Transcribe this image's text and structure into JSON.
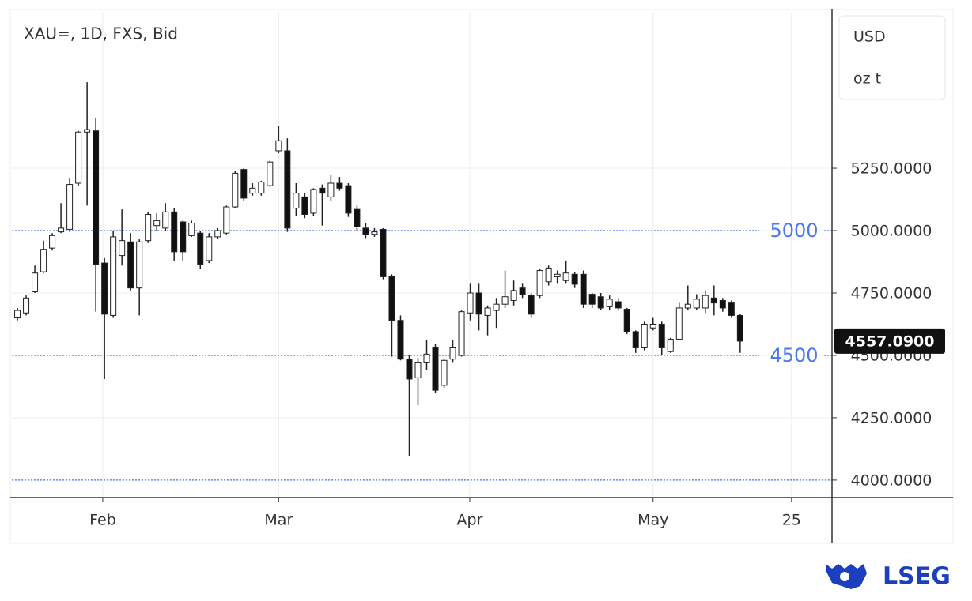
{
  "chart_data": {
    "type": "candlestick",
    "title": "XAU=, 1D, FXS, Bid",
    "units": [
      "USD",
      "oz t"
    ],
    "open": [
      4650,
      4670,
      4755,
      4835,
      4930,
      4995,
      5005,
      5190,
      5395,
      5400,
      4870,
      4660,
      4900,
      4955,
      4770,
      4960,
      5020,
      5010,
      5075,
      5035,
      4980,
      4990,
      4880,
      4975,
      4990,
      5095,
      5245,
      5150,
      5150,
      5180,
      5320,
      5320,
      5090,
      5135,
      5070,
      5170,
      5135,
      5190,
      5180,
      5085,
      5010,
      4985,
      5005,
      4815,
      4640,
      4485,
      4410,
      4470,
      4530,
      4380,
      4485,
      4500,
      4670,
      4750,
      4660,
      4680,
      4705,
      4720,
      4770,
      4740,
      4740,
      4795,
      4815,
      4800,
      4825,
      4825,
      4745,
      4735,
      4695,
      4715,
      4685,
      4595,
      4530,
      4610,
      4625,
      4515,
      4565,
      4690,
      4690,
      4690,
      4730,
      4720,
      4710,
      4660
    ],
    "high": [
      4690,
      4740,
      4860,
      4960,
      4990,
      5110,
      5210,
      5400,
      5595,
      5450,
      4890,
      5000,
      5085,
      4990,
      4965,
      5075,
      5070,
      5110,
      5090,
      5040,
      5040,
      5000,
      4990,
      5010,
      5100,
      5240,
      5250,
      5190,
      5200,
      5280,
      5420,
      5370,
      5190,
      5150,
      5170,
      5185,
      5225,
      5215,
      5190,
      5100,
      5030,
      5010,
      5010,
      4825,
      4660,
      4500,
      4490,
      4560,
      4545,
      4485,
      4560,
      4680,
      4790,
      4790,
      4700,
      4730,
      4840,
      4800,
      4790,
      4750,
      4845,
      4860,
      4840,
      4880,
      4835,
      4840,
      4750,
      4750,
      4740,
      4730,
      4690,
      4600,
      4635,
      4650,
      4635,
      4570,
      4710,
      4780,
      4745,
      4760,
      4780,
      4730,
      4720,
      4665
    ],
    "low": [
      4640,
      4660,
      4750,
      4830,
      4920,
      4990,
      4995,
      5180,
      5100,
      4675,
      4405,
      4650,
      4860,
      4760,
      4660,
      4950,
      5000,
      5000,
      4880,
      4880,
      4975,
      4845,
      4870,
      4965,
      4985,
      5090,
      5120,
      5140,
      5140,
      5175,
      5310,
      4995,
      5060,
      5050,
      5060,
      5020,
      5120,
      5160,
      5055,
      5000,
      4970,
      4975,
      4805,
      4495,
      4480,
      4095,
      4300,
      4440,
      4350,
      4370,
      4470,
      4495,
      4640,
      4600,
      4580,
      4610,
      4690,
      4700,
      4730,
      4650,
      4730,
      4780,
      4790,
      4790,
      4770,
      4690,
      4690,
      4680,
      4680,
      4680,
      4585,
      4510,
      4520,
      4600,
      4500,
      4510,
      4560,
      4680,
      4680,
      4670,
      4660,
      4675,
      4650,
      4510
    ],
    "close": [
      4680,
      4730,
      4830,
      4925,
      4980,
      5010,
      5185,
      5395,
      5405,
      4865,
      4665,
      4975,
      4960,
      4770,
      4955,
      5065,
      5040,
      5075,
      4915,
      4915,
      5030,
      4865,
      4975,
      5000,
      5095,
      5230,
      5130,
      5170,
      5195,
      5275,
      5360,
      5010,
      5150,
      5065,
      5165,
      5150,
      5190,
      5170,
      5070,
      5015,
      4985,
      4995,
      4815,
      4640,
      4485,
      4405,
      4470,
      4505,
      4360,
      4480,
      4530,
      4675,
      4750,
      4665,
      4690,
      4705,
      4735,
      4760,
      4745,
      4665,
      4840,
      4850,
      4825,
      4830,
      4785,
      4705,
      4705,
      4690,
      4725,
      4690,
      4595,
      4530,
      4625,
      4625,
      4530,
      4565,
      4690,
      4705,
      4725,
      4740,
      4710,
      4690,
      4660,
      4557.09
    ],
    "xlim": [
      -0.64,
      93.55
    ],
    "xticks": [
      {
        "value": 9.8,
        "label": "Feb"
      },
      {
        "value": 30.0,
        "label": "Mar"
      },
      {
        "value": 51.95,
        "label": "Apr"
      },
      {
        "value": 73.0,
        "label": "May"
      },
      {
        "value": 88.9,
        "label": "25"
      }
    ],
    "ylim": [
      3930,
      5877
    ],
    "yticks": [
      {
        "value": 4000,
        "label": "4000.0000"
      },
      {
        "value": 4250,
        "label": "4250.0000"
      },
      {
        "value": 4500,
        "label": "4500.0000"
      },
      {
        "value": 4750,
        "label": "4750.0000"
      },
      {
        "value": 5000,
        "label": "5000.0000"
      },
      {
        "value": 5250,
        "label": "5250.0000"
      }
    ],
    "level_lines": {
      "labeled": [
        5000,
        4500
      ],
      "unlabeled": [
        4000
      ]
    },
    "last_price": {
      "value": 4557.09,
      "label": "4557.0900"
    },
    "grid": true,
    "up_color": "#ffffff",
    "down_color": "#111111",
    "level_color": "#4a78ee",
    "brand": "LSEG"
  }
}
